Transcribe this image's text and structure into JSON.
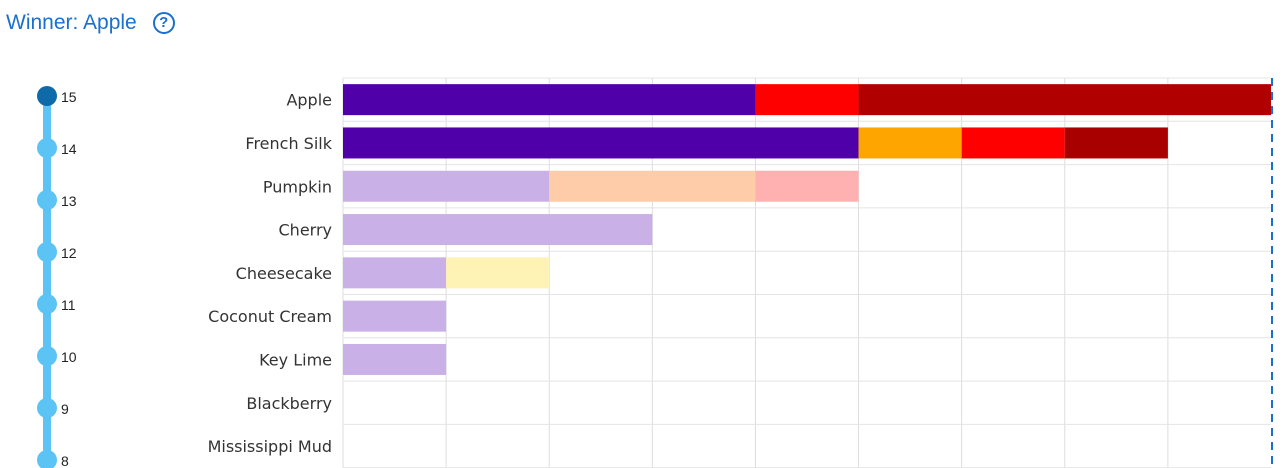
{
  "header": {
    "title": "Winner: Apple",
    "help_icon": "question-circle-icon"
  },
  "slider": {
    "steps": [
      "15",
      "14",
      "13",
      "12",
      "11",
      "10",
      "9",
      "8"
    ],
    "selected": "15",
    "track_color": "#5bc4f5",
    "selected_color": "#0e6aa8"
  },
  "chart_data": {
    "type": "bar",
    "orientation": "horizontal",
    "stacked": true,
    "categories": [
      "Apple",
      "French Silk",
      "Pumpkin",
      "Cherry",
      "Cheesecake",
      "Coconut Cream",
      "Key Lime",
      "Blackberry",
      "Mississippi Mud"
    ],
    "xlim": [
      0,
      9
    ],
    "grid": true,
    "threshold_line": {
      "value": 9,
      "style": "dashed",
      "color": "#1a6fcf"
    },
    "rows": [
      {
        "category": "Apple",
        "segments": [
          {
            "value": 4,
            "color": "#5000a8"
          },
          {
            "value": 1,
            "color": "#ff0000"
          },
          {
            "value": 4,
            "color": "#b00000"
          }
        ]
      },
      {
        "category": "French Silk",
        "segments": [
          {
            "value": 5,
            "color": "#5000a8"
          },
          {
            "value": 1,
            "color": "#ffa500"
          },
          {
            "value": 1,
            "color": "#ff0000"
          },
          {
            "value": 1,
            "color": "#a80000"
          }
        ]
      },
      {
        "category": "Pumpkin",
        "segments": [
          {
            "value": 2,
            "color": "#c9b0e6"
          },
          {
            "value": 2,
            "color": "#ffccaa"
          },
          {
            "value": 1,
            "color": "#ffb0b0"
          }
        ]
      },
      {
        "category": "Cherry",
        "segments": [
          {
            "value": 3,
            "color": "#c9b0e6"
          }
        ]
      },
      {
        "category": "Cheesecake",
        "segments": [
          {
            "value": 1,
            "color": "#c9b0e6"
          },
          {
            "value": 1,
            "color": "#fff2b5"
          }
        ]
      },
      {
        "category": "Coconut Cream",
        "segments": [
          {
            "value": 1,
            "color": "#c9b0e6"
          }
        ]
      },
      {
        "category": "Key Lime",
        "segments": [
          {
            "value": 1,
            "color": "#c9b0e6"
          }
        ]
      },
      {
        "category": "Blackberry",
        "segments": []
      },
      {
        "category": "Mississippi Mud",
        "segments": []
      }
    ]
  }
}
